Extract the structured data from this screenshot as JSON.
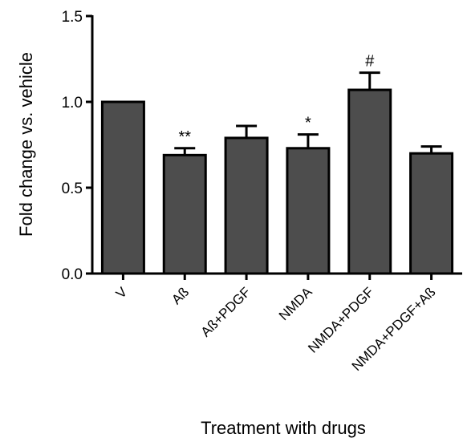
{
  "chart_data": {
    "type": "bar",
    "categories": [
      "V",
      "Aß",
      "Aß+PDGF",
      "NMDA",
      "NMDA+PDGF",
      "NMDA+PDGF+Aß"
    ],
    "values": [
      1.0,
      0.69,
      0.79,
      0.73,
      1.07,
      0.7
    ],
    "error": [
      0,
      0.04,
      0.07,
      0.08,
      0.1,
      0.04
    ],
    "annotations": [
      "",
      "**",
      "",
      "*",
      "#",
      ""
    ],
    "ylim": [
      0,
      1.5
    ],
    "yticks": [
      0.0,
      0.5,
      1.0,
      1.5
    ],
    "ytick_labels": [
      "0.0",
      "0.5",
      "1.0",
      "1.5"
    ],
    "ylabel": "Fold change vs. vehicle",
    "xlabel": "Treatment with drugs",
    "bar_color": "#4d4d4d",
    "grid": false,
    "legend": "none"
  }
}
